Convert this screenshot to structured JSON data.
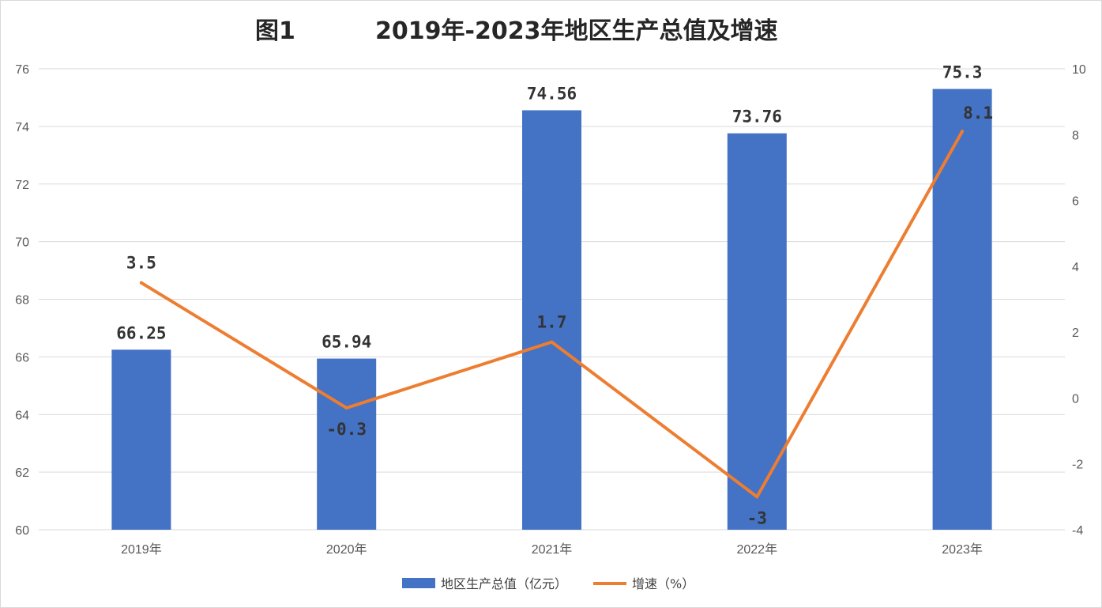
{
  "title_prefix": "图1",
  "title": "2019年-2023年地区生产总值及增速",
  "colors": {
    "bar": "#4472C4",
    "line": "#ED7D31",
    "grid": "#D9D9D9",
    "axis_text": "#595959",
    "label_text": "#333333"
  },
  "chart_data": {
    "type": "bar",
    "title": "2019年-2023年地区生产总值及增速",
    "categories": [
      "2019年",
      "2020年",
      "2021年",
      "2022年",
      "2023年"
    ],
    "series": [
      {
        "name": "地区生产总值（亿元）",
        "type": "bar",
        "axis": "left",
        "values": [
          66.25,
          65.94,
          74.56,
          73.76,
          75.3
        ],
        "labels": [
          "66.25",
          "65.94",
          "74.56",
          "73.76",
          "75.3"
        ]
      },
      {
        "name": "增速（%）",
        "type": "line",
        "axis": "right",
        "values": [
          3.5,
          -0.3,
          1.7,
          -3,
          8.1
        ],
        "labels": [
          "3.5",
          "-0.3",
          "1.7",
          "-3",
          "8.1"
        ]
      }
    ],
    "y_left": {
      "min": 60,
      "max": 76,
      "ticks": [
        "60",
        "62",
        "64",
        "66",
        "68",
        "70",
        "72",
        "74",
        "76"
      ]
    },
    "y_right": {
      "min": -4,
      "max": 10,
      "ticks": [
        "-4",
        "-2",
        "0",
        "2",
        "4",
        "6",
        "8",
        "10"
      ]
    },
    "grid": true,
    "legend_position": "bottom"
  },
  "legend": {
    "bar_label": "地区生产总值（亿元）",
    "line_label": "增速（%）"
  }
}
